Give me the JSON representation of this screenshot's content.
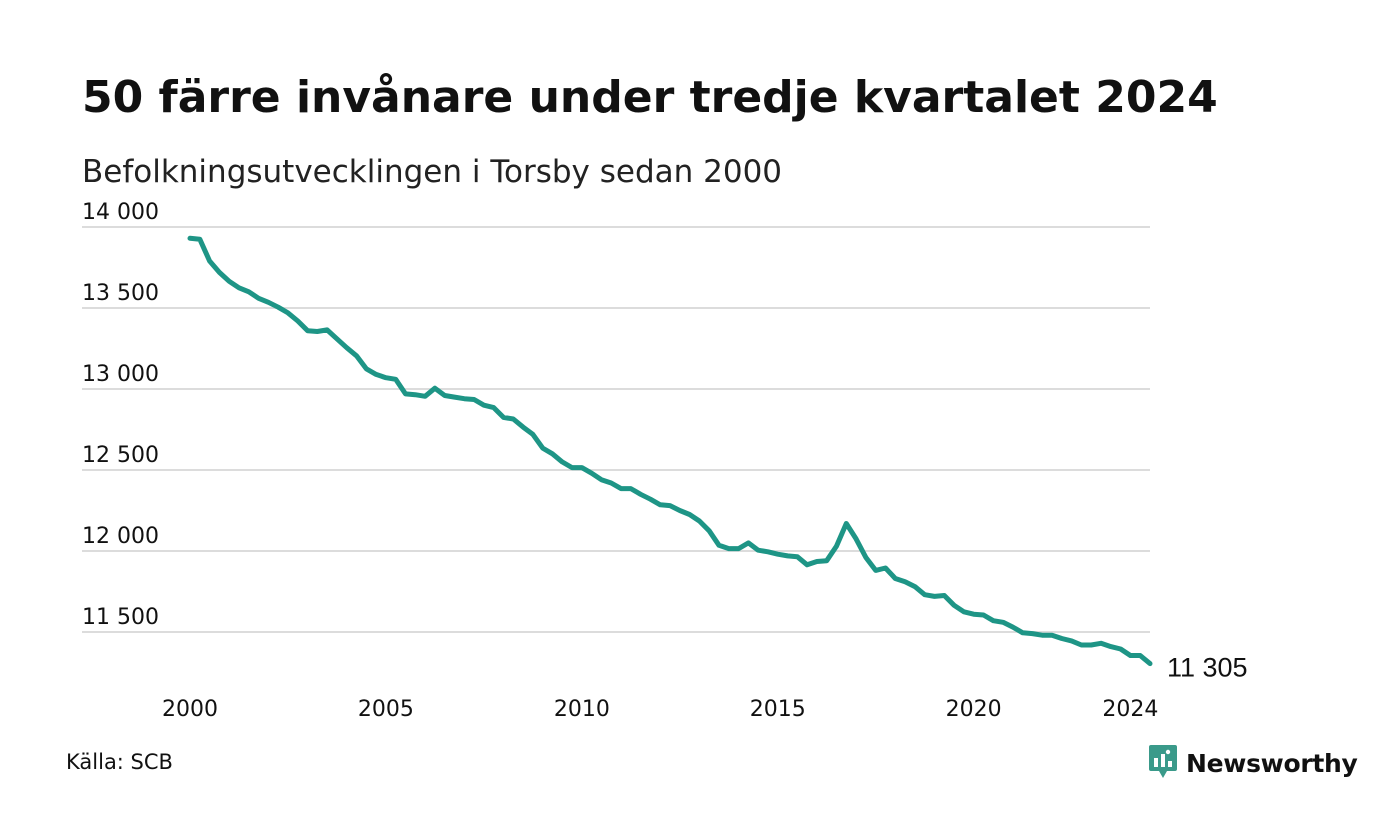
{
  "title": "50 färre invånare under tredje kvartalet 2024",
  "subtitle": "Befolkningsutvecklingen i Torsby sedan 2000",
  "source": "Källa: SCB",
  "brand": {
    "name": "Newsworthy",
    "icon": "newsworthy-logo-icon",
    "color": "#3a9a8a"
  },
  "colors": {
    "line": "#1e9586",
    "grid": "#dcdcdc",
    "text": "#111111"
  },
  "chart_data": {
    "type": "line",
    "title": "50 färre invånare under tredje kvartalet 2024",
    "subtitle": "Befolkningsutvecklingen i Torsby sedan 2000",
    "xlabel": "",
    "ylabel": "",
    "xlim": [
      2000.0,
      2024.5
    ],
    "ylim": [
      11250,
      14000
    ],
    "x_ticks": [
      2000,
      2005,
      2010,
      2015,
      2020,
      2024
    ],
    "x_tick_labels": [
      "2000",
      "2005",
      "2010",
      "2015",
      "2020",
      "2024"
    ],
    "y_ticks": [
      11500,
      12000,
      12500,
      13000,
      13500,
      14000
    ],
    "y_tick_labels": [
      "11 500",
      "12 000",
      "12 500",
      "13 000",
      "13 500",
      "14 000"
    ],
    "grid": "horizontal",
    "end_label": "11 305",
    "series": [
      {
        "x": [
          2000.0,
          2000.25,
          2000.5,
          2000.75,
          2001.0,
          2001.25,
          2001.5,
          2001.75,
          2002.0,
          2002.25,
          2002.5,
          2002.75,
          2003.0,
          2003.25,
          2003.5,
          2003.75,
          2004.0,
          2004.25,
          2004.5,
          2004.75,
          2005.0,
          2005.25,
          2005.5,
          2005.75,
          2006.0,
          2006.25,
          2006.5,
          2006.75,
          2007.0,
          2007.25,
          2007.5,
          2007.75,
          2008.0,
          2008.25,
          2008.5,
          2008.75,
          2009.0,
          2009.25,
          2009.5,
          2009.75,
          2010.0,
          2010.25,
          2010.5,
          2010.75,
          2011.0,
          2011.25,
          2011.5,
          2011.75,
          2012.0,
          2012.25,
          2012.5,
          2012.75,
          2013.0,
          2013.25,
          2013.5,
          2013.75,
          2014.0,
          2014.25,
          2014.5,
          2014.75,
          2015.0,
          2015.25,
          2015.5,
          2015.75,
          2016.0,
          2016.25,
          2016.5,
          2016.75,
          2017.0,
          2017.25,
          2017.5,
          2017.75,
          2018.0,
          2018.25,
          2018.5,
          2018.75,
          2019.0,
          2019.25,
          2019.5,
          2019.75,
          2020.0,
          2020.25,
          2020.5,
          2020.75,
          2021.0,
          2021.25,
          2021.5,
          2021.75,
          2022.0,
          2022.25,
          2022.5,
          2022.75,
          2023.0,
          2023.25,
          2023.5,
          2023.75,
          2024.0,
          2024.25,
          2024.5
        ],
        "values": [
          13930,
          13925,
          13790,
          13720,
          13665,
          13625,
          13600,
          13560,
          13535,
          13505,
          13470,
          13420,
          13360,
          13355,
          13365,
          13310,
          13255,
          13205,
          13125,
          13090,
          13070,
          13060,
          12970,
          12965,
          12955,
          13005,
          12960,
          12950,
          12940,
          12935,
          12900,
          12885,
          12825,
          12815,
          12765,
          12720,
          12635,
          12600,
          12550,
          12515,
          12515,
          12480,
          12440,
          12420,
          12385,
          12385,
          12350,
          12320,
          12285,
          12280,
          12250,
          12225,
          12185,
          12125,
          12035,
          12015,
          12015,
          12050,
          12005,
          11995,
          11980,
          11970,
          11965,
          11915,
          11935,
          11940,
          12030,
          12170,
          12075,
          11960,
          11880,
          11895,
          11830,
          11810,
          11780,
          11730,
          11720,
          11725,
          11665,
          11625,
          11610,
          11605,
          11570,
          11560,
          11530,
          11495,
          11490,
          11480,
          11480,
          11460,
          11445,
          11420,
          11420,
          11430,
          11410,
          11395,
          11355,
          11355,
          11305
        ]
      }
    ]
  }
}
